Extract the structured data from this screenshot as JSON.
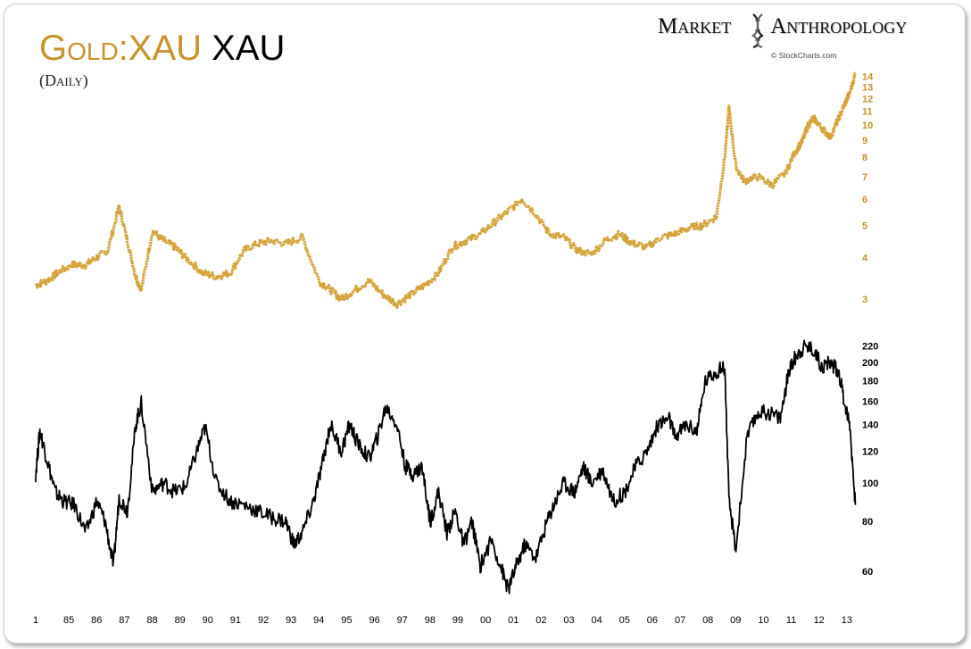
{
  "header": {
    "title_gold": "Gold:XAU",
    "title_black": "XAU",
    "subtitle": "(Daily)",
    "brand_word1": "Market",
    "brand_word2": "Anthropology",
    "copyright": "© StockCharts.com",
    "brand_icon": "dna-icon"
  },
  "colors": {
    "gold": "#d4a33a",
    "black": "#000000",
    "gold_text": "#c8922c"
  },
  "chart_data": [
    {
      "type": "line",
      "title": "Gold:XAU",
      "series": [
        {
          "name": "Gold:XAU",
          "color": "#d4a33a"
        }
      ],
      "y_scale": "log",
      "ylim": [
        2.7,
        14.5
      ],
      "yticks": [
        "3",
        "4",
        "5",
        "6",
        "7",
        "8",
        "9",
        "10",
        "11",
        "12",
        "13",
        "14"
      ],
      "x": [
        1984.0,
        1984.4,
        1984.8,
        1985.3,
        1985.8,
        1986.2,
        1986.6,
        1987.0,
        1987.3,
        1987.6,
        1987.8,
        1988.2,
        1988.6,
        1989.0,
        1989.4,
        1990.0,
        1990.5,
        1991.0,
        1991.5,
        1992.0,
        1992.5,
        1993.0,
        1993.6,
        1994.2,
        1994.6,
        1995.0,
        1995.5,
        1996.0,
        1996.5,
        1997.0,
        1997.5,
        1998.0,
        1998.5,
        1999.0,
        1999.5,
        2000.0,
        2000.5,
        2001.0,
        2001.5,
        2002.0,
        2002.5,
        2003.0,
        2003.5,
        2004.0,
        2004.5,
        2005.0,
        2005.5,
        2006.0,
        2006.5,
        2007.0,
        2007.5,
        2008.0,
        2008.5,
        2008.8,
        2008.95,
        2009.2,
        2009.5,
        2010.0,
        2010.5,
        2011.0,
        2011.3,
        2011.6,
        2011.8,
        2012.0,
        2012.3,
        2012.6,
        2012.9,
        2013.1,
        2013.3,
        2013.5
      ],
      "values": [
        3.3,
        3.4,
        3.6,
        3.8,
        3.8,
        4.0,
        4.2,
        5.7,
        4.5,
        3.5,
        3.2,
        4.8,
        4.5,
        4.3,
        4.0,
        3.6,
        3.5,
        3.6,
        4.2,
        4.4,
        4.5,
        4.4,
        4.6,
        3.4,
        3.2,
        3.0,
        3.2,
        3.4,
        3.1,
        2.9,
        3.1,
        3.3,
        3.6,
        4.3,
        4.5,
        4.7,
        5.1,
        5.5,
        6.0,
        5.4,
        4.7,
        4.6,
        4.2,
        4.1,
        4.5,
        4.7,
        4.4,
        4.3,
        4.6,
        4.7,
        4.9,
        5.0,
        5.3,
        8.0,
        11.3,
        7.5,
        6.8,
        7.0,
        6.6,
        7.2,
        8.2,
        9.0,
        10.0,
        10.5,
        9.8,
        9.2,
        10.5,
        11.5,
        12.5,
        14.3
      ]
    },
    {
      "type": "line",
      "title": "XAU",
      "series": [
        {
          "name": "XAU",
          "color": "#000000"
        }
      ],
      "y_scale": "log",
      "ylim": [
        52,
        225
      ],
      "yticks": [
        "60",
        "80",
        "100",
        "120",
        "140",
        "160",
        "180",
        "200",
        "220"
      ],
      "xticks": [
        "1",
        "85",
        "86",
        "87",
        "88",
        "89",
        "90",
        "91",
        "92",
        "93",
        "94",
        "95",
        "96",
        "97",
        "98",
        "99",
        "00",
        "01",
        "02",
        "03",
        "04",
        "05",
        "06",
        "07",
        "08",
        "09",
        "10",
        "11",
        "12",
        "13"
      ],
      "x": [
        1984.0,
        1984.15,
        1984.4,
        1984.7,
        1985.0,
        1985.4,
        1985.8,
        1986.2,
        1986.5,
        1986.8,
        1987.0,
        1987.3,
        1987.6,
        1987.8,
        1988.2,
        1988.6,
        1989.0,
        1989.4,
        1989.8,
        1990.1,
        1990.5,
        1991.0,
        1991.5,
        1992.0,
        1992.5,
        1993.0,
        1993.3,
        1993.6,
        1994.0,
        1994.3,
        1994.6,
        1995.0,
        1995.3,
        1995.6,
        1996.0,
        1996.3,
        1996.6,
        1997.0,
        1997.3,
        1997.6,
        1997.9,
        1998.2,
        1998.5,
        1998.8,
        1999.1,
        1999.4,
        1999.7,
        2000.0,
        2000.4,
        2000.8,
        2001.0,
        2001.3,
        2001.6,
        2002.0,
        2002.4,
        2002.7,
        2003.0,
        2003.4,
        2003.7,
        2004.0,
        2004.4,
        2004.8,
        2005.2,
        2005.6,
        2006.0,
        2006.4,
        2006.8,
        2007.0,
        2007.4,
        2007.8,
        2008.1,
        2008.5,
        2008.8,
        2008.95,
        2009.2,
        2009.6,
        2010.0,
        2010.4,
        2010.8,
        2011.1,
        2011.4,
        2011.7,
        2012.0,
        2012.3,
        2012.6,
        2012.9,
        2013.1,
        2013.3,
        2013.5
      ],
      "values": [
        105,
        135,
        115,
        95,
        90,
        88,
        75,
        90,
        80,
        62,
        92,
        85,
        140,
        158,
        95,
        100,
        95,
        98,
        120,
        138,
        100,
        90,
        88,
        85,
        82,
        80,
        70,
        75,
        90,
        110,
        140,
        120,
        140,
        125,
        115,
        130,
        155,
        140,
        110,
        105,
        110,
        80,
        95,
        75,
        85,
        70,
        80,
        62,
        72,
        60,
        54,
        62,
        70,
        65,
        80,
        90,
        100,
        95,
        110,
        100,
        108,
        90,
        95,
        110,
        120,
        140,
        145,
        130,
        140,
        135,
        180,
        190,
        195,
        90,
        68,
        130,
        150,
        150,
        145,
        190,
        210,
        220,
        215,
        195,
        200,
        190,
        160,
        140,
        88
      ]
    }
  ]
}
